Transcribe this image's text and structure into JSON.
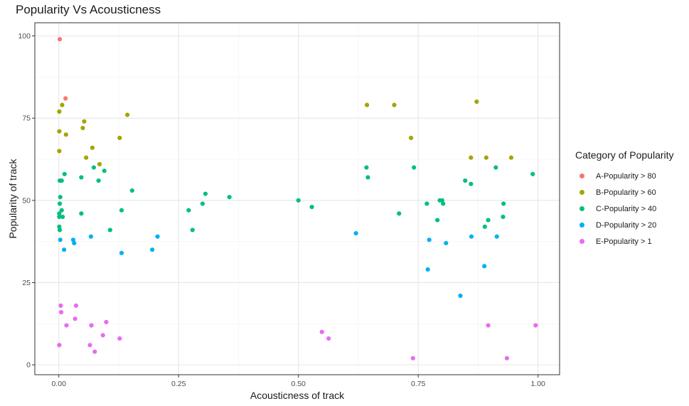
{
  "chart_data": {
    "type": "scatter",
    "title": "Popularity Vs Acousticness",
    "xlabel": "Acousticness of track",
    "ylabel": "Popularity of track",
    "xlim": [
      -0.05,
      1.045
    ],
    "ylim": [
      -3,
      104
    ],
    "x_ticks": [
      0,
      0.25,
      0.5,
      0.75,
      1
    ],
    "x_tick_labels": [
      "0.00",
      "0.25",
      "0.50",
      "0.75",
      "1.00"
    ],
    "y_ticks": [
      0,
      25,
      50,
      75,
      100
    ],
    "y_tick_labels": [
      "0",
      "25",
      "50",
      "75",
      "100"
    ],
    "grid": true,
    "legend_title": "Category of Popularity",
    "legend_position": "right",
    "series": [
      {
        "name": "A-Popularity > 80",
        "color": "#F8766D",
        "points": [
          [
            0.002,
            99
          ],
          [
            0.014,
            81
          ]
        ]
      },
      {
        "name": "B-Popularity > 60",
        "color": "#A3A500",
        "points": [
          [
            0.001,
            77
          ],
          [
            0.007,
            79
          ],
          [
            0.001,
            71
          ],
          [
            0.015,
            70
          ],
          [
            0.001,
            65
          ],
          [
            0.053,
            74
          ],
          [
            0.05,
            72
          ],
          [
            0.143,
            76
          ],
          [
            0.127,
            69
          ],
          [
            0.07,
            66
          ],
          [
            0.057,
            63
          ],
          [
            0.085,
            61
          ],
          [
            0.643,
            79
          ],
          [
            0.7,
            79
          ],
          [
            0.872,
            80
          ],
          [
            0.735,
            69
          ],
          [
            0.86,
            63
          ],
          [
            0.892,
            63
          ],
          [
            0.944,
            63
          ]
        ]
      },
      {
        "name": "C-Popularity > 40",
        "color": "#00BF7D",
        "points": [
          [
            0.002,
            56
          ],
          [
            0.006,
            56
          ],
          [
            0.012,
            58
          ],
          [
            0.003,
            51
          ],
          [
            0.002,
            49
          ],
          [
            0.001,
            46
          ],
          [
            0.006,
            47
          ],
          [
            0.001,
            45
          ],
          [
            0.008,
            45
          ],
          [
            0.001,
            42
          ],
          [
            0.002,
            41
          ],
          [
            0.047,
            57
          ],
          [
            0.073,
            60
          ],
          [
            0.095,
            59
          ],
          [
            0.083,
            56
          ],
          [
            0.047,
            46
          ],
          [
            0.153,
            53
          ],
          [
            0.131,
            47
          ],
          [
            0.107,
            41
          ],
          [
            0.271,
            47
          ],
          [
            0.306,
            52
          ],
          [
            0.3,
            49
          ],
          [
            0.279,
            41
          ],
          [
            0.356,
            51
          ],
          [
            0.5,
            50
          ],
          [
            0.528,
            48
          ],
          [
            0.642,
            60
          ],
          [
            0.645,
            57
          ],
          [
            0.741,
            60
          ],
          [
            0.71,
            46
          ],
          [
            0.768,
            49
          ],
          [
            0.79,
            44
          ],
          [
            0.795,
            50
          ],
          [
            0.8,
            50
          ],
          [
            0.802,
            49
          ],
          [
            0.848,
            56
          ],
          [
            0.86,
            55
          ],
          [
            0.912,
            60
          ],
          [
            0.989,
            58
          ],
          [
            0.928,
            49
          ],
          [
            0.927,
            45
          ],
          [
            0.896,
            44
          ],
          [
            0.889,
            42
          ]
        ]
      },
      {
        "name": "D-Popularity > 20",
        "color": "#00B0F6",
        "points": [
          [
            0.003,
            38
          ],
          [
            0.011,
            35
          ],
          [
            0.03,
            38
          ],
          [
            0.032,
            37
          ],
          [
            0.067,
            39
          ],
          [
            0.131,
            34
          ],
          [
            0.206,
            39
          ],
          [
            0.195,
            35
          ],
          [
            0.62,
            40
          ],
          [
            0.773,
            38
          ],
          [
            0.808,
            37
          ],
          [
            0.77,
            29
          ],
          [
            0.861,
            39
          ],
          [
            0.914,
            39
          ],
          [
            0.888,
            30
          ],
          [
            0.838,
            21
          ]
        ]
      },
      {
        "name": "E-Popularity > 1",
        "color": "#E76BF3",
        "points": [
          [
            0.004,
            18
          ],
          [
            0.005,
            16
          ],
          [
            0.036,
            18
          ],
          [
            0.016,
            12
          ],
          [
            0.034,
            14
          ],
          [
            0.068,
            12
          ],
          [
            0.099,
            13
          ],
          [
            0.092,
            9
          ],
          [
            0.065,
            6
          ],
          [
            0.075,
            4
          ],
          [
            0.127,
            8
          ],
          [
            0.001,
            6
          ],
          [
            0.549,
            10
          ],
          [
            0.563,
            8
          ],
          [
            0.739,
            2
          ],
          [
            0.896,
            12
          ],
          [
            0.995,
            12
          ],
          [
            0.935,
            2
          ]
        ]
      }
    ]
  }
}
